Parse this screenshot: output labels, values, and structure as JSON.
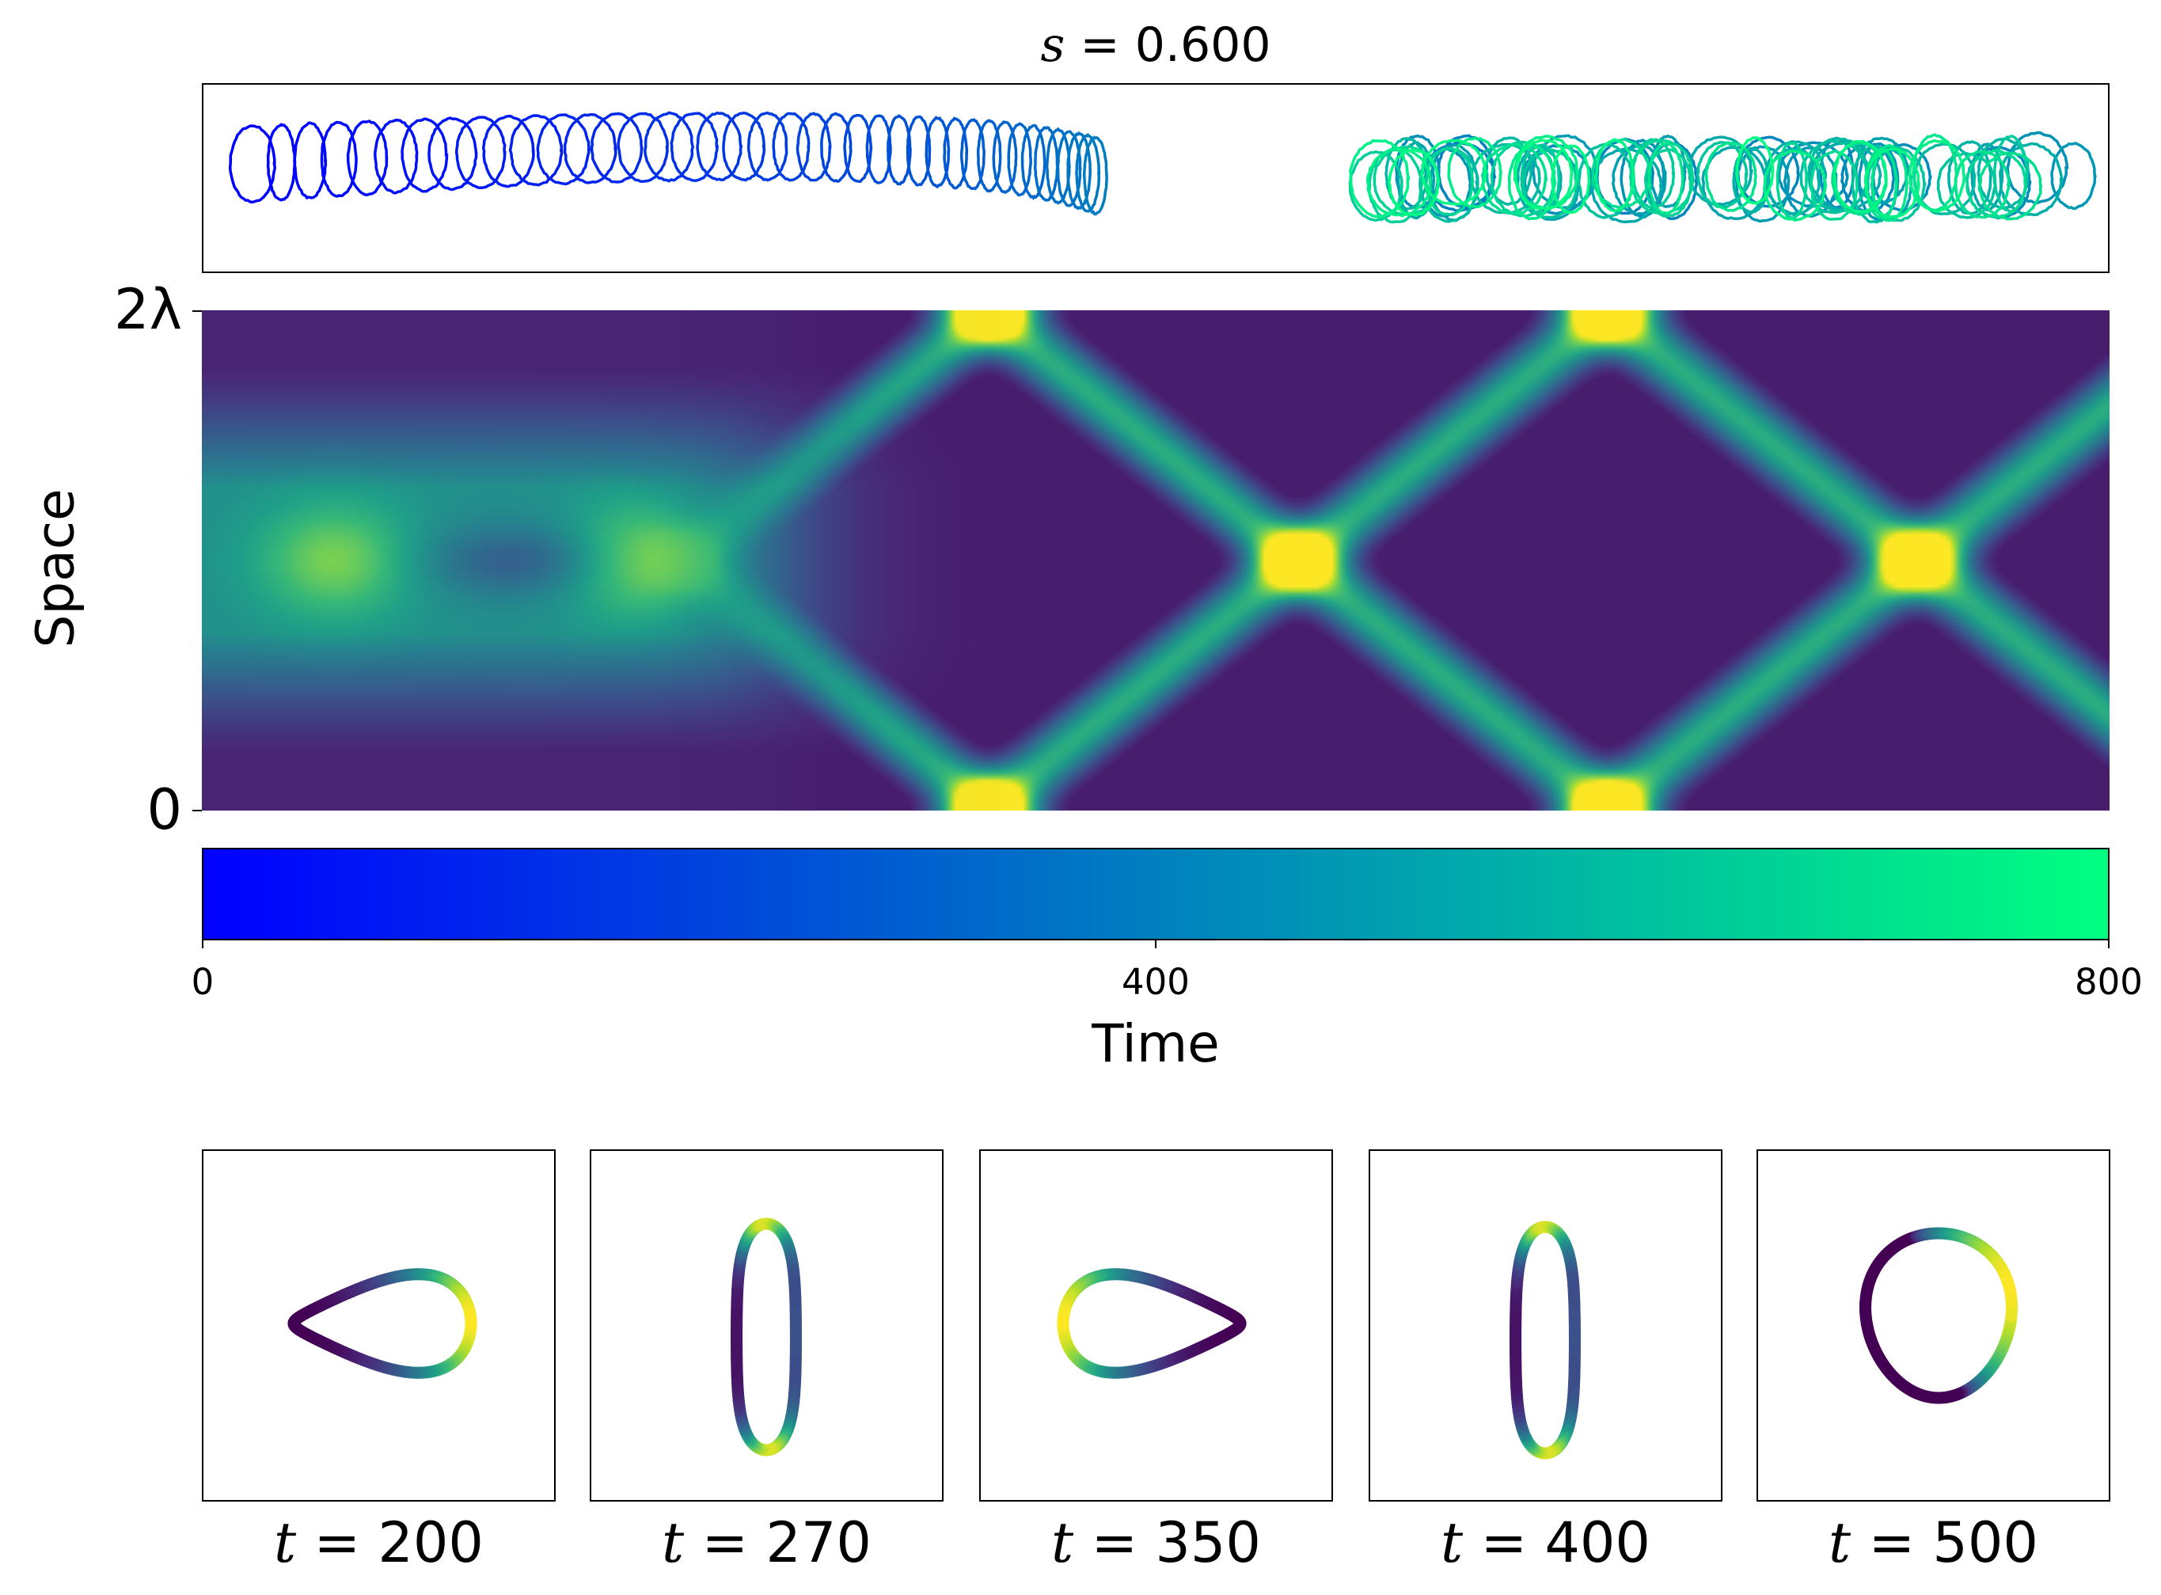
{
  "chart_data": [
    {
      "type": "line",
      "name": "cell-trajectory-contours",
      "title_var": "s",
      "title_value": "= 0.600",
      "description_color": "contours colored by time (blue to green)",
      "time_range": [
        0,
        800
      ]
    },
    {
      "type": "heatmap",
      "name": "kymograph",
      "xlabel": "Time",
      "ylabel": "Space",
      "xlim": [
        0,
        800
      ],
      "ytick_labels": [
        "0",
        "2λ"
      ],
      "colormap": "viridis",
      "band_period": 260,
      "first_edge_peak_time": 330,
      "center_peak_times": [
        55,
        185,
        455,
        715
      ],
      "edge_peak_times": [
        330,
        590
      ]
    },
    {
      "type": "colorbar",
      "colormap": "winter",
      "range": [
        0,
        800
      ],
      "tick_labels": [
        "0",
        "400",
        "800"
      ],
      "label": "Time"
    },
    {
      "type": "scatter",
      "name": "cell-shape-snapshots",
      "snapshots": [
        {
          "t_var": "t",
          "t_value": "= 200",
          "shape": "teardrop-left"
        },
        {
          "t_var": "t",
          "t_value": "= 270",
          "shape": "peanut-vertical"
        },
        {
          "t_var": "t",
          "t_value": "= 350",
          "shape": "teardrop-right"
        },
        {
          "t_var": "t",
          "t_value": "= 400",
          "shape": "peanut-vertical"
        },
        {
          "t_var": "t",
          "t_value": "= 500",
          "shape": "oval"
        }
      ]
    }
  ],
  "colors": {
    "cmap_start": "#0000ff",
    "cmap_end": "#00ff80"
  }
}
